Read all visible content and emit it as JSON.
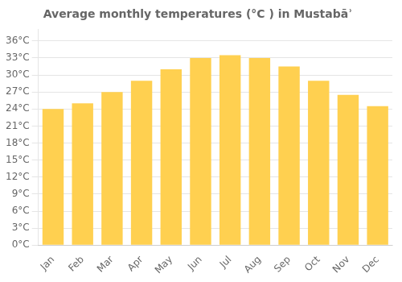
{
  "chart_data": {
    "type": "bar",
    "title": "Average monthly temperatures (°C ) in Mustabāʾ",
    "categories": [
      "Jan",
      "Feb",
      "Mar",
      "Apr",
      "May",
      "Jun",
      "Jul",
      "Aug",
      "Sep",
      "Oct",
      "Nov",
      "Dec"
    ],
    "values": [
      24,
      25,
      27,
      29,
      31,
      33,
      33.5,
      33,
      31.5,
      29,
      26.5,
      24.5
    ],
    "color": "#FFD050",
    "ylim": [
      0,
      38
    ],
    "yticks": [
      {
        "value": 0,
        "label": "0°C"
      },
      {
        "value": 3,
        "label": "3°C"
      },
      {
        "value": 6,
        "label": "6°C"
      },
      {
        "value": 9,
        "label": "9°C"
      },
      {
        "value": 12,
        "label": "12°C"
      },
      {
        "value": 15,
        "label": "15°C"
      },
      {
        "value": 18,
        "label": "18°C"
      },
      {
        "value": 21,
        "label": "21°C"
      },
      {
        "value": 24,
        "label": "24°C"
      },
      {
        "value": 27,
        "label": "27°C"
      },
      {
        "value": 30,
        "label": "30°C"
      },
      {
        "value": 33,
        "label": "33°C"
      },
      {
        "value": 36,
        "label": "36°C"
      }
    ],
    "grid": true
  }
}
